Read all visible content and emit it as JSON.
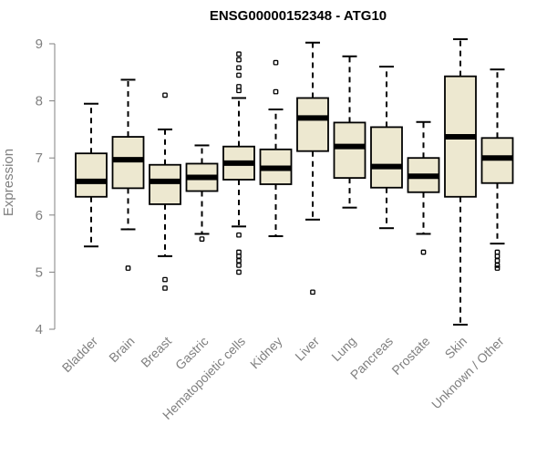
{
  "chart_data": {
    "type": "boxplot",
    "title": "ENSG00000152348 - ATG10",
    "ylabel": "Expression",
    "ylim": [
      4,
      9
    ],
    "yticks": [
      4,
      5,
      6,
      7,
      8,
      9
    ],
    "box_color": "#EDE8D0",
    "categories": [
      "Bladder",
      "Brain",
      "Breast",
      "Gastric",
      "Hematopoietic cells",
      "Kidney",
      "Liver",
      "Lung",
      "Pancreas",
      "Prostate",
      "Skin",
      "Unknown / Other"
    ],
    "boxes": [
      {
        "min": 5.45,
        "q1": 6.32,
        "median": 6.59,
        "q3": 7.08,
        "max": 7.95,
        "outliers": []
      },
      {
        "min": 5.75,
        "q1": 6.47,
        "median": 6.97,
        "q3": 7.37,
        "max": 8.37,
        "outliers": [
          5.07
        ]
      },
      {
        "min": 5.28,
        "q1": 6.19,
        "median": 6.59,
        "q3": 6.88,
        "max": 7.5,
        "outliers": [
          8.1,
          4.87,
          4.72
        ]
      },
      {
        "min": 5.67,
        "q1": 6.42,
        "median": 6.66,
        "q3": 6.9,
        "max": 7.22,
        "outliers": [
          5.58
        ]
      },
      {
        "min": 5.8,
        "q1": 6.62,
        "median": 6.91,
        "q3": 7.2,
        "max": 8.05,
        "outliers": [
          8.82,
          8.72,
          8.58,
          8.45,
          8.25,
          8.18,
          5.65,
          5.35,
          5.28,
          5.2,
          5.12,
          5.0
        ]
      },
      {
        "min": 5.63,
        "q1": 6.54,
        "median": 6.82,
        "q3": 7.15,
        "max": 7.85,
        "outliers": [
          8.67,
          8.16
        ]
      },
      {
        "min": 5.92,
        "q1": 7.12,
        "median": 7.7,
        "q3": 8.05,
        "max": 9.02,
        "outliers": [
          4.65
        ]
      },
      {
        "min": 6.13,
        "q1": 6.65,
        "median": 7.2,
        "q3": 7.62,
        "max": 8.78,
        "outliers": []
      },
      {
        "min": 5.77,
        "q1": 6.48,
        "median": 6.85,
        "q3": 7.54,
        "max": 8.6,
        "outliers": []
      },
      {
        "min": 5.67,
        "q1": 6.4,
        "median": 6.68,
        "q3": 7.0,
        "max": 7.63,
        "outliers": [
          5.35
        ]
      },
      {
        "min": 4.08,
        "q1": 6.32,
        "median": 7.37,
        "q3": 8.43,
        "max": 9.08,
        "outliers": []
      },
      {
        "min": 5.5,
        "q1": 6.56,
        "median": 7.0,
        "q3": 7.35,
        "max": 8.55,
        "outliers": [
          5.35,
          5.28,
          5.2,
          5.12,
          5.07
        ]
      }
    ]
  }
}
